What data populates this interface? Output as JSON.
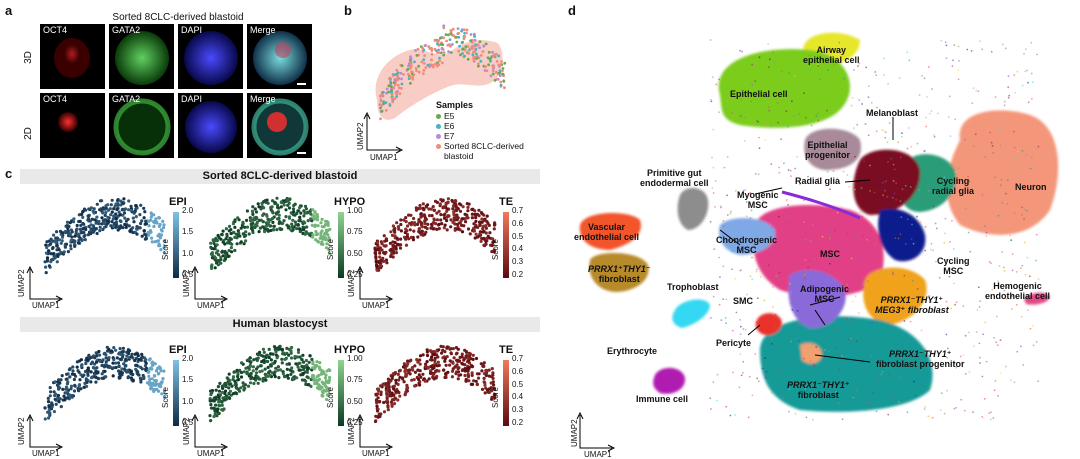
{
  "panels": {
    "a": "a",
    "b": "b",
    "c": "c",
    "d": "d"
  },
  "panel_a": {
    "title": "Sorted 8CLC-derived blastoid",
    "rows": [
      "3D",
      "2D"
    ],
    "channels": [
      "OCT4",
      "GATA2",
      "DAPI",
      "Merge"
    ]
  },
  "panel_b": {
    "legend_title": "Samples",
    "legend": [
      {
        "label": "E5",
        "color": "#6aa84f"
      },
      {
        "label": "E6",
        "color": "#46b3c4"
      },
      {
        "label": "E7",
        "color": "#b58ad8"
      },
      {
        "label": "Sorted 8CLC-derived",
        "color": "#f08c7a"
      },
      {
        "label": "blastoid",
        "color": ""
      }
    ],
    "xaxis": "UMAP1",
    "yaxis": "UMAP2"
  },
  "panel_c": {
    "bands": [
      "Sorted 8CLC-derived blastoid",
      "Human blastocyst"
    ],
    "xaxis": "UMAP1",
    "yaxis": "UMAP2",
    "score_label": "Score",
    "plots": [
      {
        "name": "EPI",
        "ticks": [
          "2.0",
          "1.5",
          "1.0",
          "0.5"
        ],
        "color_lo": "#0f2a44",
        "color_hi": "#7ec3e6"
      },
      {
        "name": "HYPO",
        "ticks": [
          "1.00",
          "0.75",
          "0.50",
          "0.25"
        ],
        "color_lo": "#0b3a24",
        "color_hi": "#8fd48f"
      },
      {
        "name": "TE",
        "ticks": [
          "0.7",
          "0.6",
          "0.5",
          "0.4",
          "0.3",
          "0.2"
        ],
        "color_lo": "#5a0a12",
        "color_hi": "#f07a5a"
      }
    ]
  },
  "panel_d": {
    "xaxis": "UMAP1",
    "yaxis": "UMAP2",
    "labels": {
      "airway": [
        "Airway",
        "epithelial cell"
      ],
      "epithelial": "Epithelial cell",
      "melanoblast": "Melanoblast",
      "epi_prog": [
        "Epithelial",
        "progenitor"
      ],
      "prim_gut": [
        "Primitive gut",
        "endodermal cell"
      ],
      "radial": "Radial glia",
      "cycling_radial": [
        "Cycling",
        "radial glia"
      ],
      "neuron": "Neuron",
      "myogenic": [
        "Myogenic",
        "MSC"
      ],
      "vascular": [
        "Vascular",
        "endothelial cell"
      ],
      "prrx_fib": [
        "PRRX1⁺THY1⁻",
        "fibroblast"
      ],
      "chondro": [
        "Chondrogenic",
        "MSC"
      ],
      "msc": "MSC",
      "cycling_msc": [
        "Cycling",
        "MSC"
      ],
      "hemogenic": [
        "Hemogenic",
        "endothelial cell"
      ],
      "trophoblast": "Trophoblast",
      "smc": "SMC",
      "adipogenic": [
        "Adipogenic",
        "MSC"
      ],
      "meg3": [
        "PRRX1⁻THY1⁺",
        "MEG3⁺ fibroblast"
      ],
      "pericyte": "Pericyte",
      "fib_prog": [
        "PRRX1⁻THY1⁺",
        "fibroblast progenitor"
      ],
      "erythrocyte": "Erythrocyte",
      "immune": "Immune cell",
      "thy_fib": [
        "PRRX1⁻THY1⁺",
        "fibroblast"
      ]
    },
    "colors": {
      "epithelial": "#7ccc1f",
      "airway": "#e6e62a",
      "neuron": "#f4967a",
      "cycling_radial": "#2c9c78",
      "radial": "#7a0f22",
      "msc": "#e23f86",
      "cycling_msc": "#0a1f8c",
      "meg3": "#f0a21a",
      "thy_fib": "#159a98",
      "vascular": "#f2542c",
      "prrx_fib": "#b78a2a",
      "chondro": "#7fa8e6",
      "prim_gut": "#8d8d8d",
      "trophoblast": "#36d8f2",
      "pericyte": "#e8322b",
      "immune": "#b01ab0",
      "hemogenic": "#e04a86",
      "melano": "#8a2a55",
      "myogenic": "#8a2ad8",
      "epi_prog": "#a88a9a",
      "adipogenic": "#8a6ad8",
      "smc": "#5a7ab8",
      "fib_prog": "#f2a070"
    }
  }
}
